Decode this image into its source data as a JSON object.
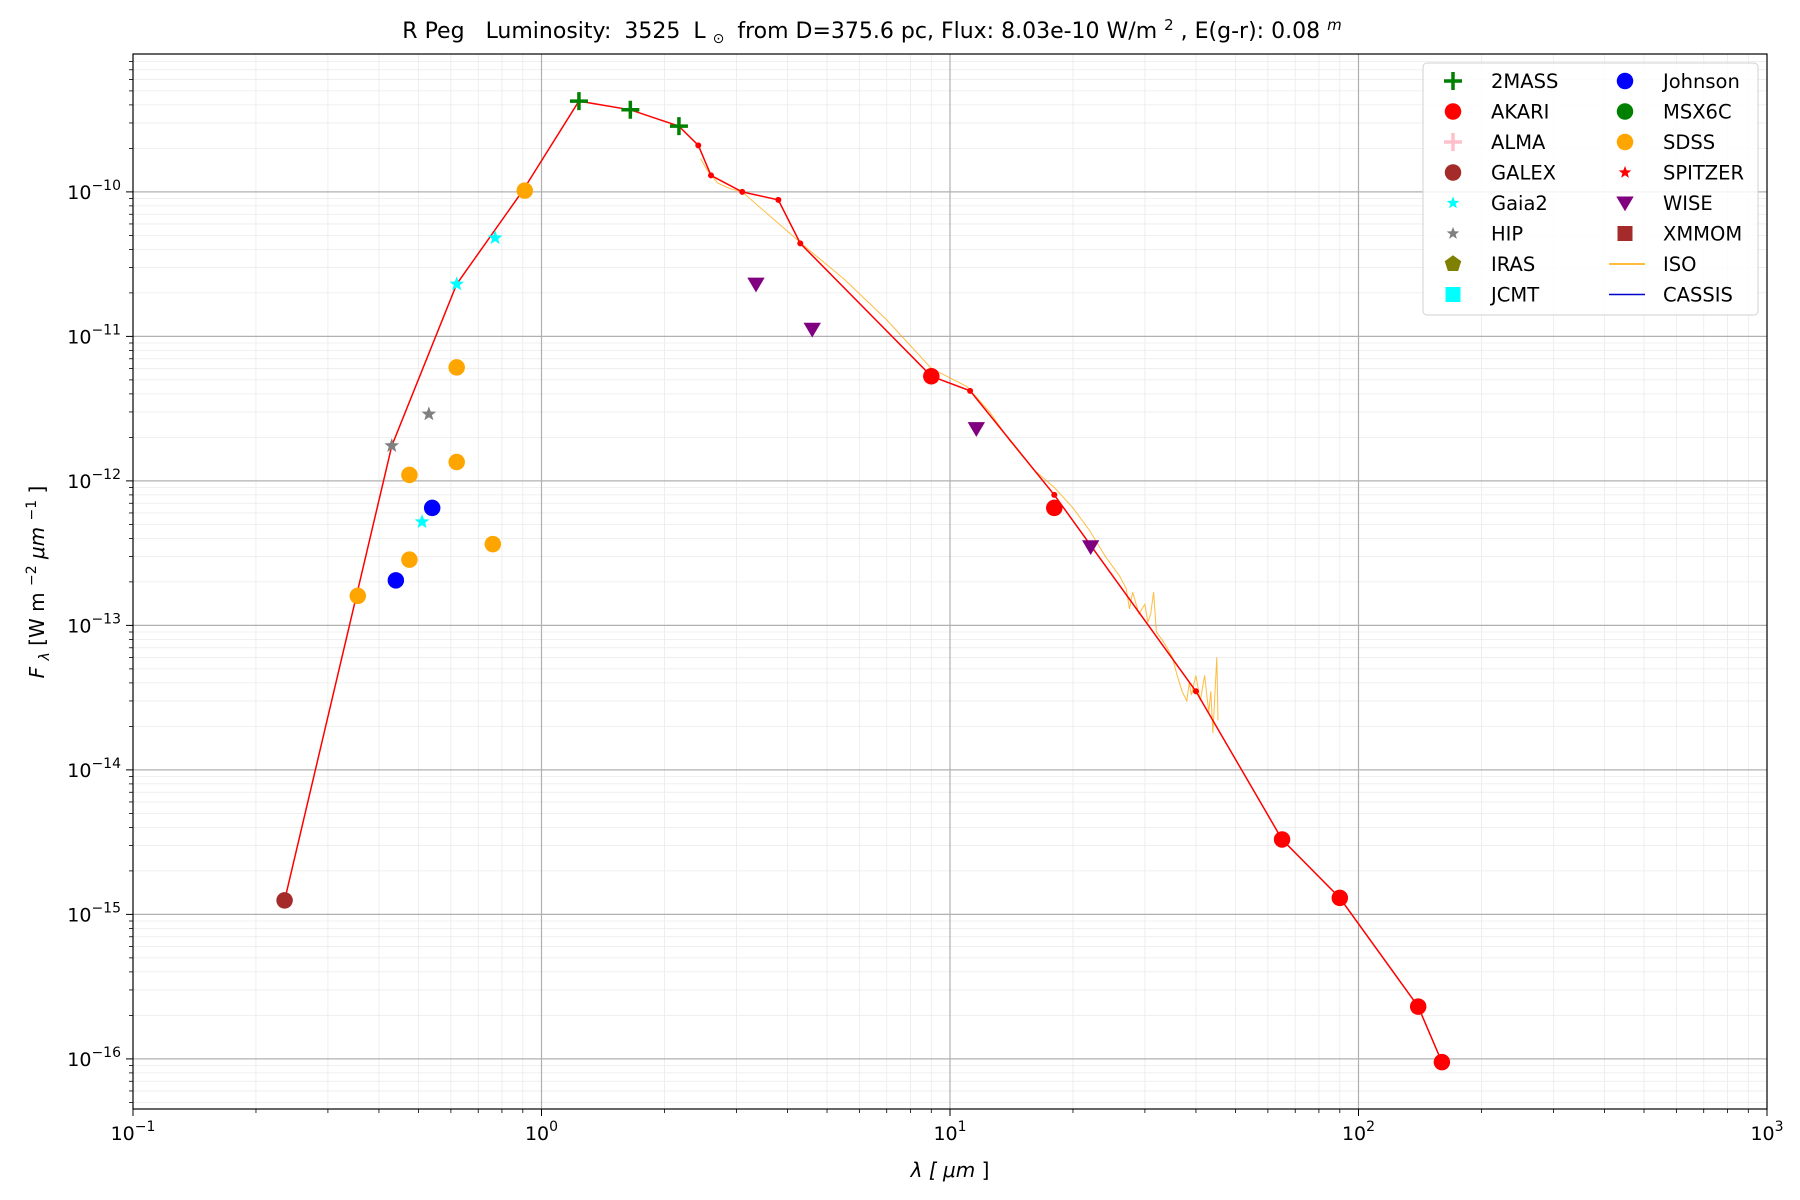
{
  "chart_data": {
    "type": "scatter",
    "title": {
      "star": "R Peg",
      "label": "Luminosity:",
      "value": "3525",
      "unit": "L",
      "sun_symbol": "⊙",
      "from_text": "from D=375.6 pc, Flux: 8.03e-10 W/m",
      "flux_sup": "2",
      "ext_text": ", E(g-r): 0.08",
      "ext_sup": "m"
    },
    "xlabel": {
      "main": "λ [",
      "unit": "μm",
      "close": "]"
    },
    "ylabel": {
      "main": "F",
      "sub": "λ",
      "rest": " [W m",
      "sup1": "−2",
      "unit": "μm",
      "sup2": "−1",
      "close": "]"
    },
    "xscale": "log",
    "yscale": "log",
    "xlim": [
      0.1,
      1000
    ],
    "ylim": [
      4.5e-17,
      9e-10
    ],
    "grid": true,
    "legend_position": "upper-right",
    "x_ticks": [
      {
        "value": 0.1,
        "base": "10",
        "exp": "−1"
      },
      {
        "value": 1,
        "base": "10",
        "exp": "0"
      },
      {
        "value": 10,
        "base": "10",
        "exp": "1"
      },
      {
        "value": 100,
        "base": "10",
        "exp": "2"
      },
      {
        "value": 1000,
        "base": "10",
        "exp": "3"
      }
    ],
    "y_ticks": [
      {
        "value": 1e-16,
        "base": "10",
        "exp": "−16"
      },
      {
        "value": 1e-15,
        "base": "10",
        "exp": "−15"
      },
      {
        "value": 1e-14,
        "base": "10",
        "exp": "−14"
      },
      {
        "value": 1e-13,
        "base": "10",
        "exp": "−13"
      },
      {
        "value": 1e-12,
        "base": "10",
        "exp": "−12"
      },
      {
        "value": 1e-11,
        "base": "10",
        "exp": "−11"
      },
      {
        "value": 1e-10,
        "base": "10",
        "exp": "−10"
      }
    ],
    "model_line": {
      "color": "#ff0000",
      "points": [
        [
          0.235,
          1.25e-15
        ],
        [
          0.43,
          1.75e-12
        ],
        [
          0.62,
          2.3e-11
        ],
        [
          0.9,
          1.02e-10
        ],
        [
          1.235,
          4.25e-10
        ],
        [
          1.65,
          3.7e-10
        ],
        [
          2.17,
          2.85e-10
        ],
        [
          2.42,
          2.1e-10
        ],
        [
          2.6,
          1.3e-10
        ],
        [
          3.1,
          1e-10
        ],
        [
          3.8,
          8.8e-11
        ],
        [
          4.3,
          4.4e-11
        ],
        [
          9.0,
          5.3e-12
        ],
        [
          11.2,
          4.2e-12
        ],
        [
          18.0,
          8e-13
        ],
        [
          40.0,
          3.5e-14
        ],
        [
          65.0,
          3.3e-15
        ],
        [
          90.0,
          1.3e-15
        ],
        [
          140.0,
          2.3e-16
        ],
        [
          160.0,
          9.5e-17
        ]
      ],
      "dots": [
        [
          0.43,
          1.75e-12
        ],
        [
          0.62,
          2.3e-11
        ],
        [
          0.9,
          1.02e-10
        ],
        [
          2.42,
          2.1e-10
        ],
        [
          2.6,
          1.3e-10
        ],
        [
          3.1,
          1e-10
        ],
        [
          3.8,
          8.8e-11
        ],
        [
          4.3,
          4.4e-11
        ],
        [
          11.2,
          4.2e-12
        ],
        [
          18.0,
          8e-13
        ],
        [
          40.0,
          3.5e-14
        ]
      ]
    },
    "iso_spectrum": {
      "color": "#ffa500",
      "points": [
        [
          2.45,
          1.7e-10
        ],
        [
          2.55,
          1.4e-10
        ],
        [
          2.7,
          1.15e-10
        ],
        [
          2.9,
          1.05e-10
        ],
        [
          3.1,
          1e-10
        ],
        [
          4.5,
          4e-11
        ],
        [
          5.5,
          2.5e-11
        ],
        [
          7.0,
          1.3e-11
        ],
        [
          9.0,
          6e-12
        ],
        [
          11.0,
          4.5e-12
        ],
        [
          12.5,
          3e-12
        ],
        [
          14.0,
          1.9e-12
        ],
        [
          16.0,
          1.2e-12
        ],
        [
          18.0,
          9e-13
        ],
        [
          20.0,
          6.5e-13
        ],
        [
          22.0,
          4.5e-13
        ],
        [
          24.0,
          3e-13
        ],
        [
          26.0,
          2.2e-13
        ],
        [
          27.0,
          1.8e-13
        ],
        [
          27.5,
          1.3e-13
        ],
        [
          28.0,
          1.7e-13
        ],
        [
          29.0,
          1.2e-13
        ],
        [
          30.0,
          1.4e-13
        ],
        [
          30.5,
          1.05e-13
        ],
        [
          31.0,
          1.2e-13
        ],
        [
          31.5,
          1.7e-13
        ],
        [
          32.0,
          9e-14
        ],
        [
          33.0,
          8e-14
        ],
        [
          34.0,
          7e-14
        ],
        [
          35.0,
          6e-14
        ],
        [
          36.0,
          4.5e-14
        ],
        [
          37.0,
          3.5e-14
        ],
        [
          38.0,
          3e-14
        ],
        [
          38.5,
          4e-14
        ],
        [
          39.0,
          3.3e-14
        ],
        [
          40.0,
          4.5e-14
        ],
        [
          41.0,
          3e-14
        ],
        [
          42.0,
          4.5e-14
        ],
        [
          43.0,
          2.5e-14
        ],
        [
          43.5,
          3.5e-14
        ],
        [
          44.0,
          1.8e-14
        ],
        [
          45.0,
          6e-14
        ],
        [
          45.3,
          2.2e-14
        ]
      ]
    },
    "legend": {
      "columns": [
        [
          "2MASS",
          "AKARI",
          "ALMA",
          "GALEX",
          "Gaia2",
          "HIP",
          "IRAS",
          "JCMT"
        ],
        [
          "Johnson",
          "MSX6C",
          "SDSS",
          "SPITZER",
          "WISE",
          "XMMOM",
          "ISO",
          "CASSIS"
        ]
      ]
    },
    "series": [
      {
        "name": "2MASS",
        "color": "#008000",
        "marker": "plus",
        "points": [
          [
            1.235,
            4.25e-10
          ],
          [
            1.65,
            3.7e-10
          ],
          [
            2.17,
            2.85e-10
          ]
        ]
      },
      {
        "name": "AKARI",
        "color": "#ff0000",
        "marker": "circle",
        "points": [
          [
            9.0,
            5.3e-12
          ],
          [
            18.0,
            6.5e-13
          ],
          [
            65.0,
            3.3e-15
          ],
          [
            90.0,
            1.3e-15
          ],
          [
            140.0,
            2.3e-16
          ],
          [
            160.0,
            9.5e-17
          ]
        ]
      },
      {
        "name": "ALMA",
        "color": "#ffc0cb",
        "marker": "plus",
        "points": []
      },
      {
        "name": "GALEX",
        "color": "#a52a2a",
        "marker": "circle",
        "points": [
          [
            0.235,
            1.25e-15
          ]
        ]
      },
      {
        "name": "Gaia2",
        "color": "#00ffff",
        "marker": "star",
        "points": [
          [
            0.51,
            5.2e-13
          ],
          [
            0.62,
            2.3e-11
          ],
          [
            0.77,
            4.8e-11
          ]
        ]
      },
      {
        "name": "HIP",
        "color": "#808080",
        "marker": "star",
        "points": [
          [
            0.43,
            1.75e-12
          ],
          [
            0.53,
            2.9e-12
          ]
        ]
      },
      {
        "name": "IRAS",
        "color": "#808000",
        "marker": "pentagon",
        "points": []
      },
      {
        "name": "JCMT",
        "color": "#00ffff",
        "marker": "square",
        "points": []
      },
      {
        "name": "Johnson",
        "color": "#0000ff",
        "marker": "circle",
        "points": [
          [
            0.44,
            2.05e-13
          ],
          [
            0.54,
            6.5e-13
          ]
        ]
      },
      {
        "name": "MSX6C",
        "color": "#008000",
        "marker": "circle",
        "points": []
      },
      {
        "name": "SDSS",
        "color": "#ffa500",
        "marker": "circle",
        "points": [
          [
            0.355,
            1.6e-13
          ],
          [
            0.475,
            1.1e-12
          ],
          [
            0.475,
            2.85e-13
          ],
          [
            0.62,
            6.1e-12
          ],
          [
            0.62,
            1.35e-12
          ],
          [
            0.76,
            3.65e-13
          ],
          [
            0.91,
            1.02e-10
          ]
        ]
      },
      {
        "name": "SPITZER",
        "color": "#ff0000",
        "marker": "star",
        "points": []
      },
      {
        "name": "WISE",
        "color": "#800080",
        "marker": "triangle-down",
        "points": [
          [
            3.35,
            2.3e-11
          ],
          [
            4.6,
            1.12e-11
          ],
          [
            11.6,
            2.3e-12
          ],
          [
            22.1,
            3.5e-13
          ]
        ]
      },
      {
        "name": "XMMOM",
        "color": "#a52a2a",
        "marker": "square",
        "points": []
      },
      {
        "name": "ISO",
        "color": "#ffa500",
        "marker": "line",
        "points": []
      },
      {
        "name": "CASSIS",
        "color": "#0000cd",
        "marker": "line",
        "points": []
      }
    ]
  }
}
